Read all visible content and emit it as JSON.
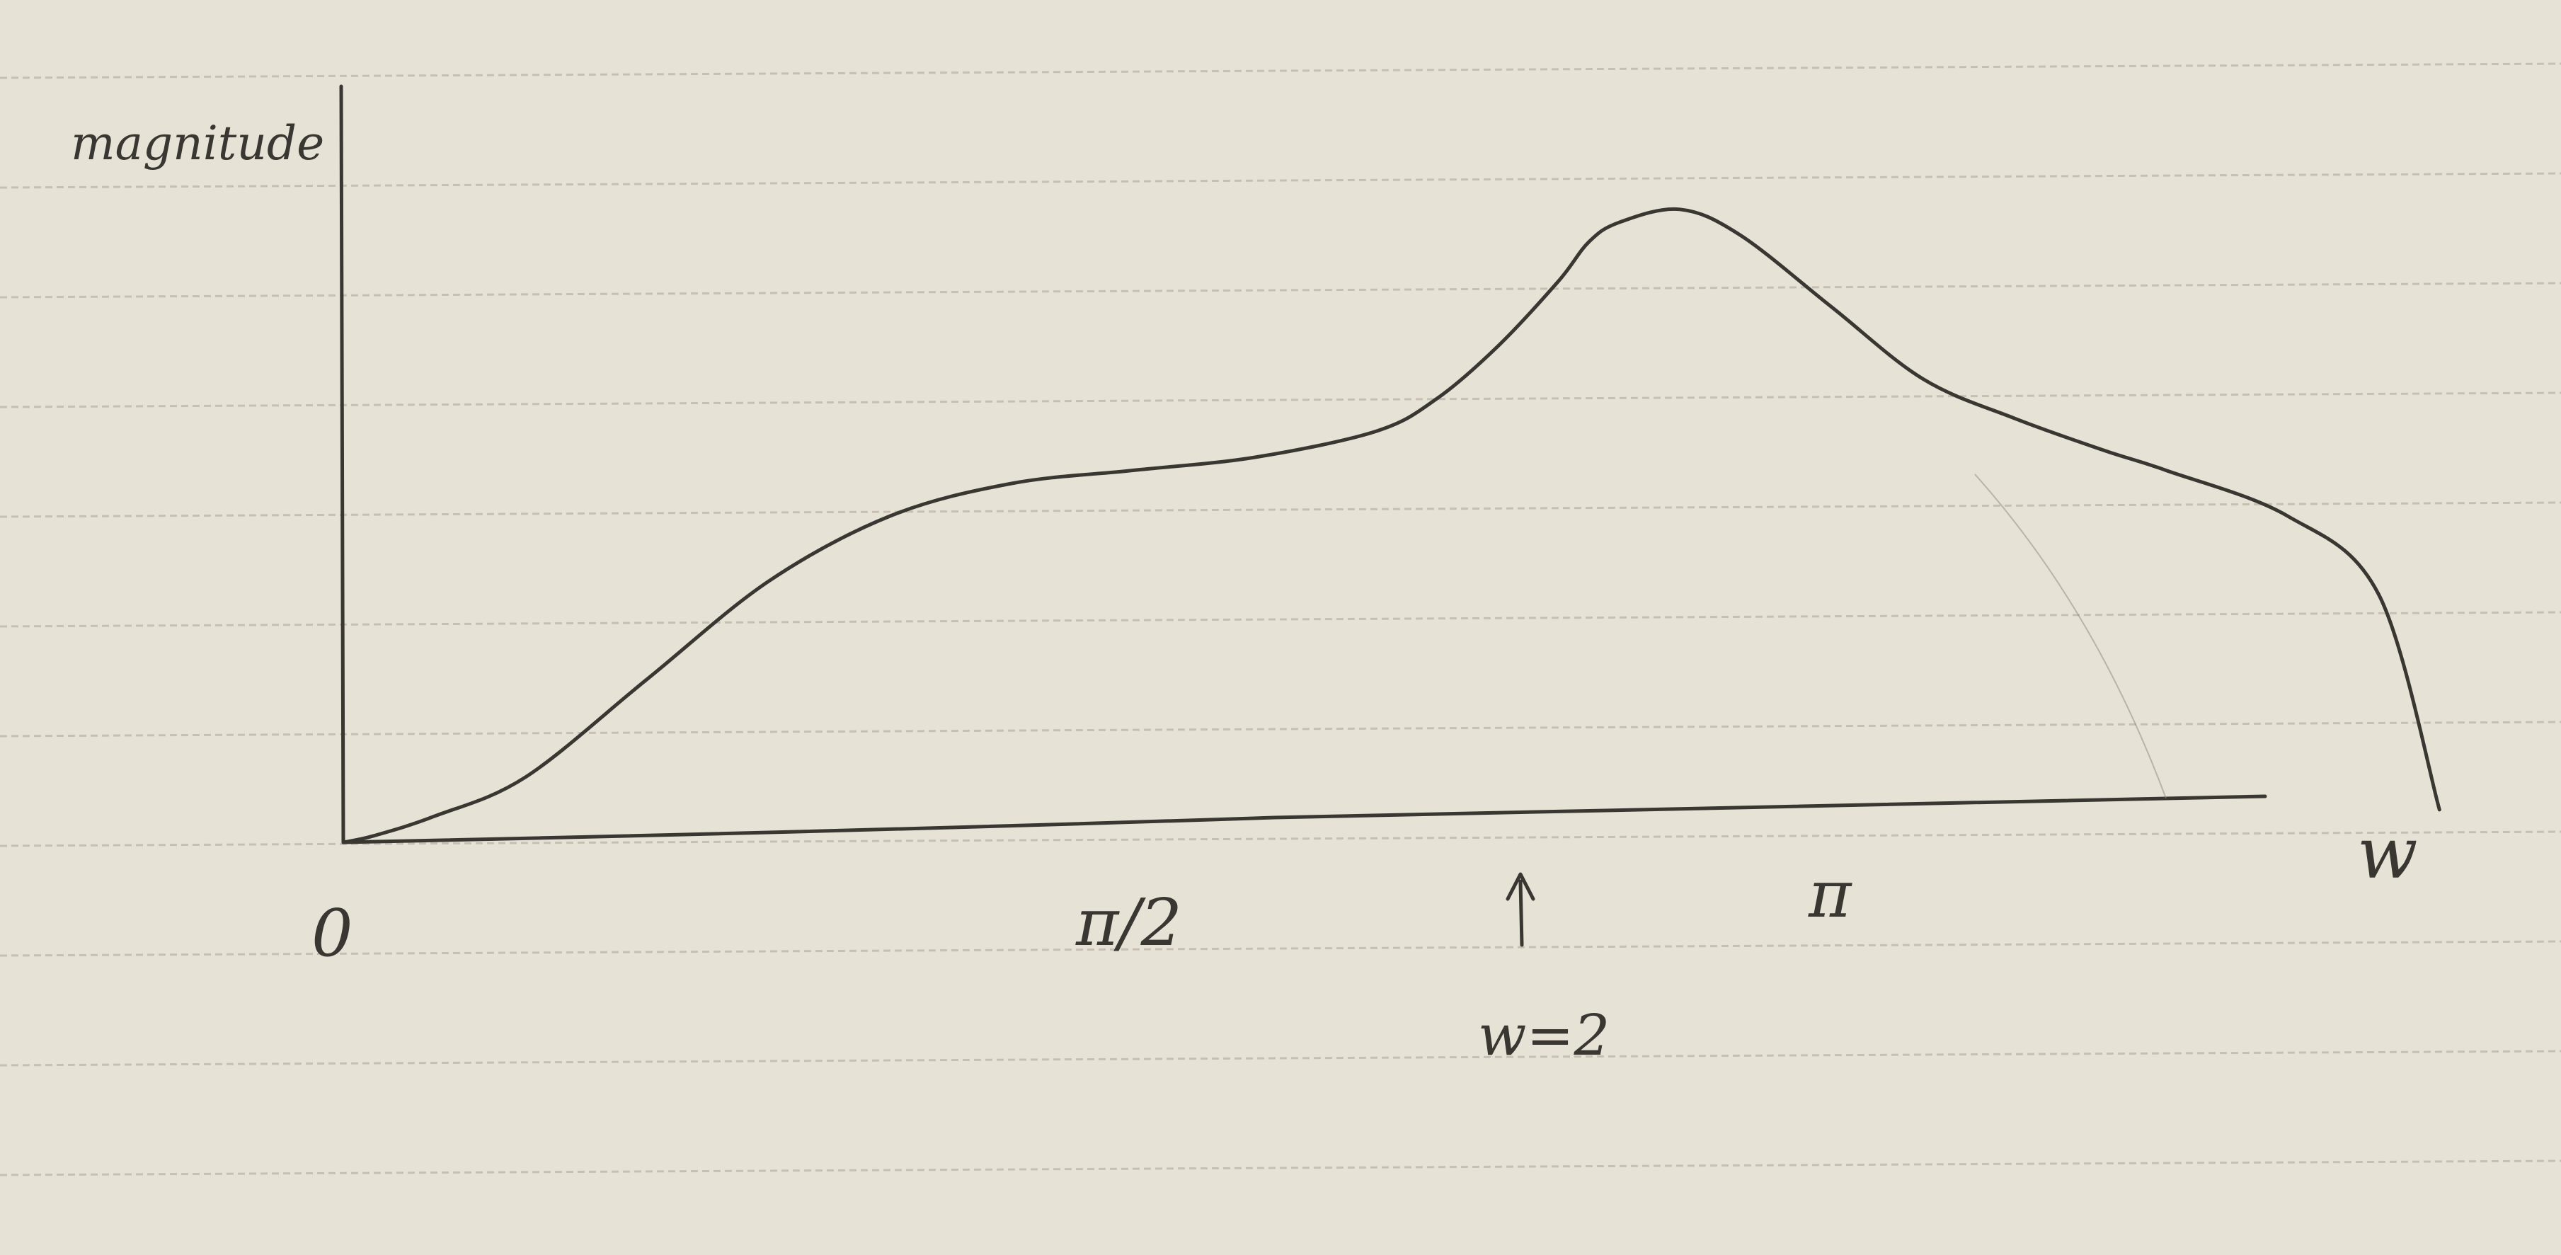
{
  "colors": {
    "paper": "#e7e2d6",
    "rule_line": "#b9b3a7",
    "ink": "#3a3733",
    "pencil": "#8a857d"
  },
  "chart_data": {
    "type": "line",
    "title": "",
    "xlabel": "w",
    "ylabel": "magnitude",
    "x_ticks": [
      {
        "label": "0",
        "value": 0
      },
      {
        "label": "π/2",
        "value": 1.5708
      },
      {
        "label": "π",
        "value": 3.1416
      }
    ],
    "annotation": {
      "label": "w=2",
      "x": 2.0,
      "marker": "^"
    },
    "xlim": [
      0,
      3.6
    ],
    "ylim": [
      0,
      1.05
    ],
    "grid": false,
    "series": [
      {
        "x": [
          0,
          0.05,
          0.15,
          0.3,
          0.5,
          0.7,
          0.9,
          1.1,
          1.3,
          1.5,
          1.7,
          1.8,
          1.9,
          2.0,
          2.05,
          2.1,
          2.2,
          2.3,
          2.45,
          2.6,
          2.75,
          2.9,
          3.0,
          3.2,
          3.35,
          3.45
        ],
        "y": [
          0.0,
          0.01,
          0.04,
          0.1,
          0.25,
          0.4,
          0.5,
          0.55,
          0.57,
          0.59,
          0.63,
          0.68,
          0.76,
          0.86,
          0.92,
          0.95,
          0.97,
          0.93,
          0.82,
          0.71,
          0.65,
          0.6,
          0.57,
          0.5,
          0.38,
          0.05
        ]
      }
    ]
  }
}
